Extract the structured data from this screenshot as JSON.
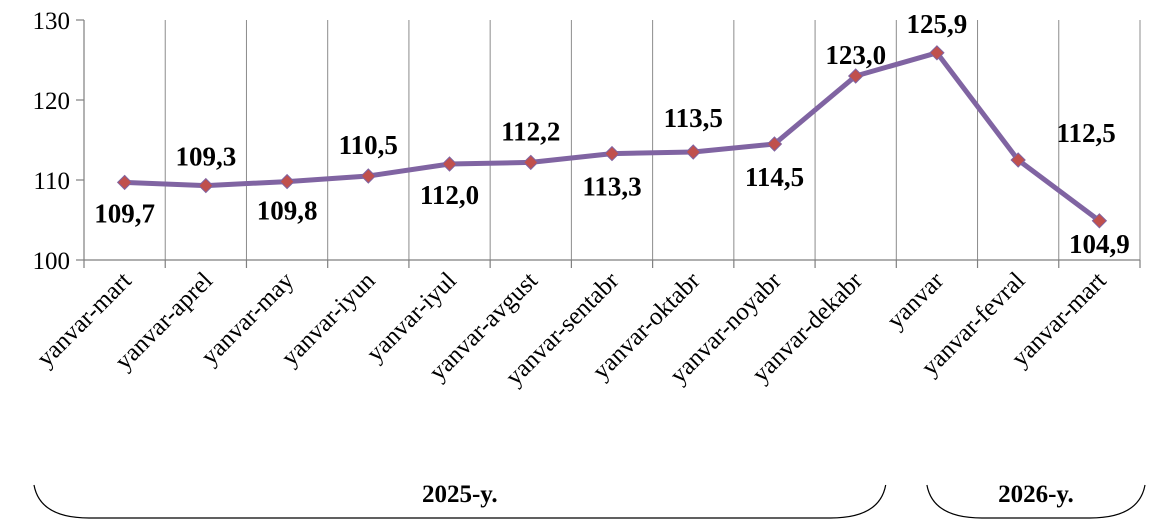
{
  "chart_data": {
    "type": "line",
    "categories": [
      "yanvar-mart",
      "yanvar-aprel",
      "yanvar-may",
      "yanvar-iyun",
      "yanvar-iyul",
      "yanvar-avgust",
      "yanvar-sentabr",
      "yanvar-oktabr",
      "yanvar-noyabr",
      "yanvar-dekabr",
      "yanvar",
      "yanvar-fevral",
      "yanvar-mart"
    ],
    "values": [
      109.7,
      109.3,
      109.8,
      110.5,
      112.0,
      112.2,
      113.3,
      113.5,
      114.5,
      123.0,
      125.9,
      112.5,
      104.9
    ],
    "value_labels": [
      "109,7",
      "109,3",
      "109,8",
      "110,5",
      "112,0",
      "112,2",
      "113,3",
      "113,5",
      "114,5",
      "123,0",
      "125,9",
      "112,5",
      "104,9"
    ],
    "y_ticks": [
      "100",
      "110",
      "120",
      "130"
    ],
    "ylim": [
      100,
      130
    ],
    "grid": "vertical",
    "line_color": "#8064a2",
    "marker_color": "#c0504d",
    "year_groups": [
      {
        "label": "2025-y.",
        "count": 10
      },
      {
        "label": "2026-y.",
        "count": 3
      }
    ]
  }
}
